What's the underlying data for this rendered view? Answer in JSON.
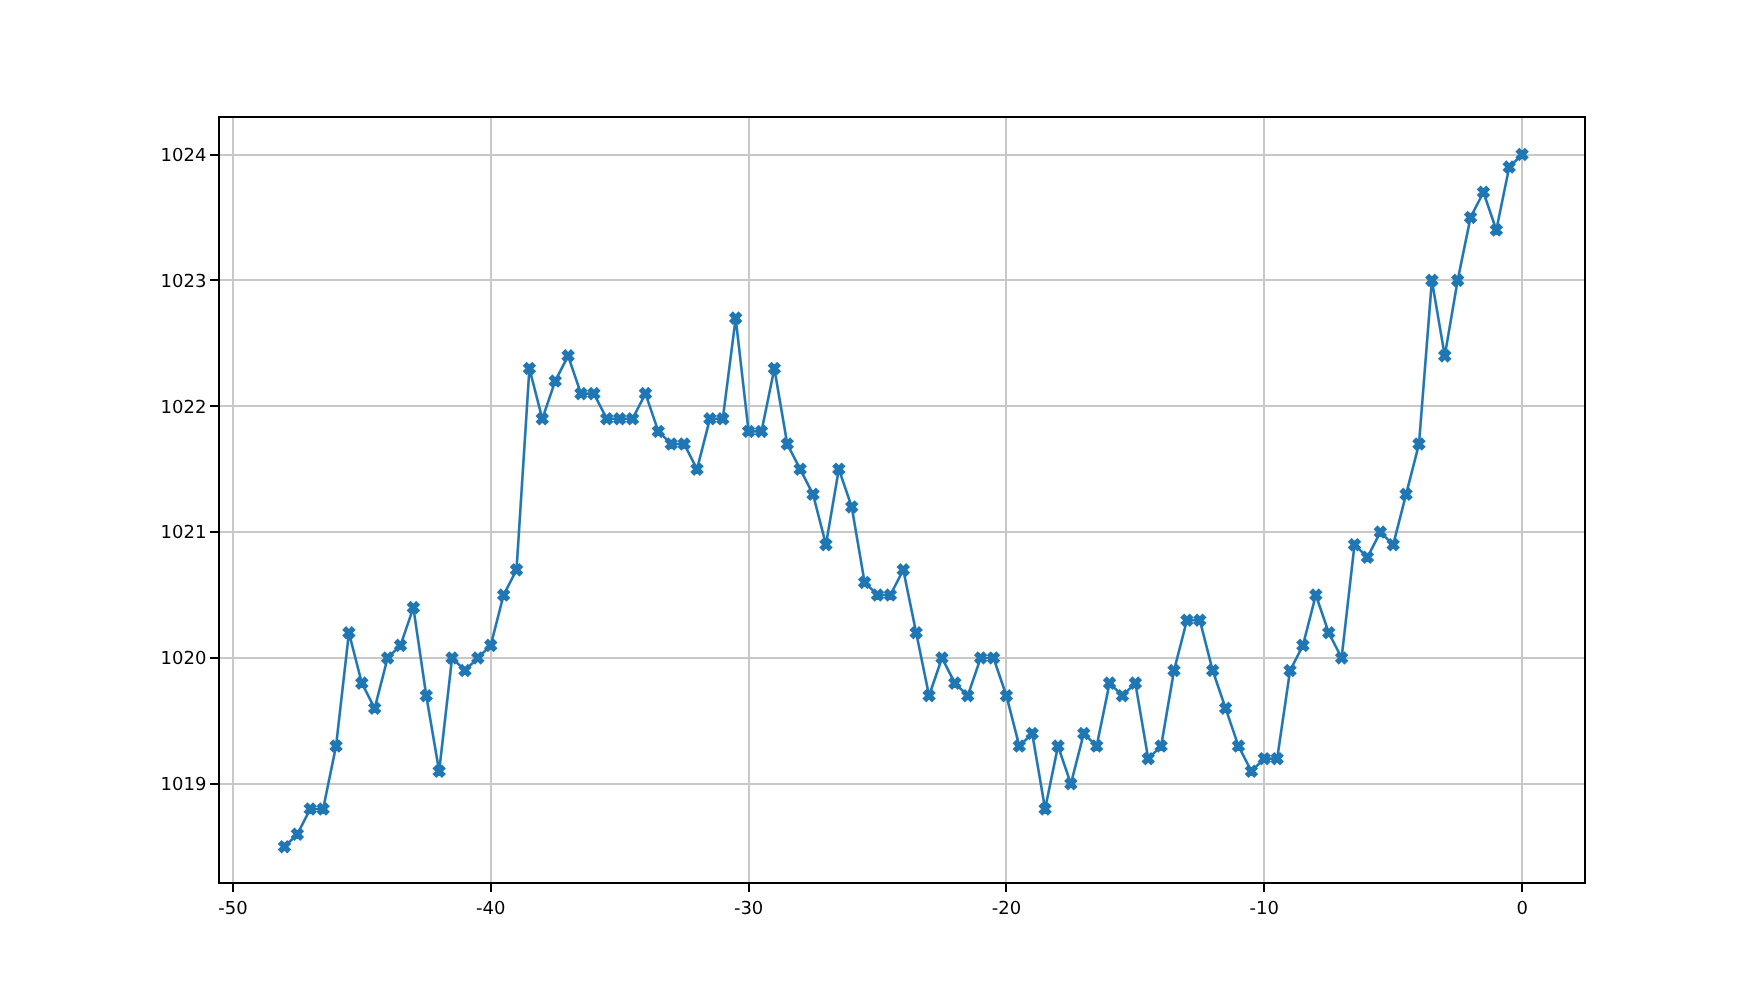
{
  "chart_data": {
    "type": "line",
    "marker": "cross",
    "grid": true,
    "x": [
      -48,
      -47.5,
      -47,
      -46.5,
      -46,
      -45.5,
      -45,
      -44.5,
      -44,
      -43.5,
      -43,
      -42.5,
      -42,
      -41.5,
      -41,
      -40.5,
      -40,
      -39.5,
      -39,
      -38.5,
      -38,
      -37.5,
      -37,
      -36.5,
      -36,
      -35.5,
      -35,
      -34.5,
      -34,
      -33.5,
      -33,
      -32.5,
      -32,
      -31.5,
      -31,
      -30.5,
      -30,
      -29.5,
      -29,
      -28.5,
      -28,
      -27.5,
      -27,
      -26.5,
      -26,
      -25.5,
      -25,
      -24.5,
      -24,
      -23.5,
      -23,
      -22.5,
      -22,
      -21.5,
      -21,
      -20.5,
      -20,
      -19.5,
      -19,
      -18.5,
      -18,
      -17.5,
      -17,
      -16.5,
      -16,
      -15.5,
      -15,
      -14.5,
      -14,
      -13.5,
      -13,
      -12.5,
      -12,
      -11.5,
      -11,
      -10.5,
      -10,
      -9.5,
      -9,
      -8.5,
      -8,
      -7.5,
      -7,
      -6.5,
      -6,
      -5.5,
      -5,
      -4.5,
      -4,
      -3.5,
      -3,
      -2.5,
      -2,
      -1.5,
      -1,
      -0.5,
      0
    ],
    "series": [
      {
        "color": "#1f77b4",
        "values": [
          1018.5,
          1018.6,
          1018.8,
          1018.8,
          1019.3,
          1020.2,
          1019.8,
          1019.6,
          1020.0,
          1020.1,
          1020.4,
          1019.7,
          1019.1,
          1020.0,
          1019.9,
          1020.0,
          1020.1,
          1020.5,
          1020.7,
          1022.3,
          1021.9,
          1022.2,
          1022.4,
          1022.1,
          1022.1,
          1021.9,
          1021.9,
          1021.9,
          1022.1,
          1021.8,
          1021.7,
          1021.7,
          1021.5,
          1021.9,
          1021.9,
          1022.7,
          1021.8,
          1021.8,
          1022.3,
          1021.7,
          1021.5,
          1021.3,
          1020.9,
          1021.5,
          1021.2,
          1020.6,
          1020.5,
          1020.5,
          1020.7,
          1020.2,
          1019.7,
          1020.0,
          1019.8,
          1019.7,
          1020.0,
          1020.0,
          1019.7,
          1019.3,
          1019.4,
          1018.8,
          1019.3,
          1019.0,
          1019.4,
          1019.3,
          1019.8,
          1019.7,
          1019.8,
          1019.2,
          1019.3,
          1019.9,
          1020.3,
          1020.3,
          1019.9,
          1019.6,
          1019.3,
          1019.1,
          1019.2,
          1019.2,
          1019.9,
          1020.1,
          1020.5,
          1020.2,
          1020.0,
          1020.9,
          1020.8,
          1021.0,
          1020.9,
          1021.3,
          1021.7,
          1023.0,
          1022.4,
          1023.0,
          1023.5,
          1023.7,
          1023.4,
          1023.9,
          1024.0
        ]
      }
    ],
    "xlim": [
      -50.5,
      2.4
    ],
    "ylim": [
      1018.22,
      1024.29
    ],
    "xticks": [
      -50,
      -40,
      -30,
      -20,
      -10,
      0
    ],
    "yticks": [
      1019,
      1020,
      1021,
      1022,
      1023,
      1024
    ]
  }
}
